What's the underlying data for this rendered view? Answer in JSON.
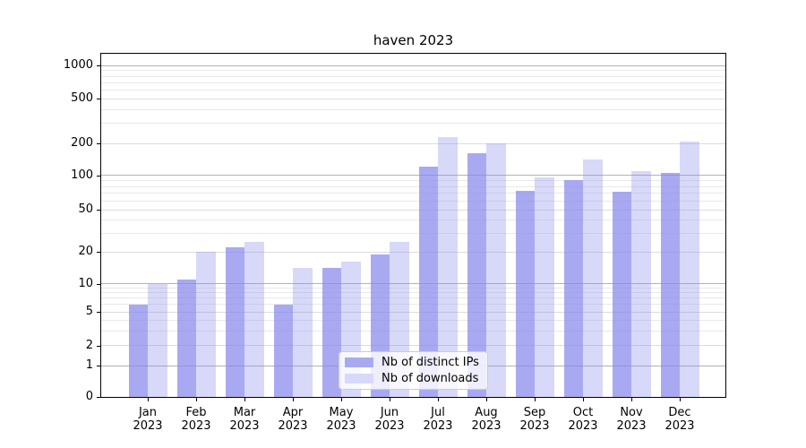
{
  "title": "haven 2023",
  "chart_data": {
    "type": "bar",
    "title": "haven 2023",
    "categories": [
      "Jan\n2023",
      "Feb\n2023",
      "Mar\n2023",
      "Apr\n2023",
      "May\n2023",
      "Jun\n2023",
      "Jul\n2023",
      "Aug\n2023",
      "Sep\n2023",
      "Oct\n2023",
      "Nov\n2023",
      "Dec\n2023"
    ],
    "series": [
      {
        "name": "Nb of distinct IPs",
        "values": [
          6,
          11,
          22,
          6,
          14,
          19,
          120,
          160,
          73,
          91,
          72,
          105
        ],
        "fill": "rgba(136,136,237,0.72)",
        "legend_color": "#a9a9f2"
      },
      {
        "name": "Nb of downloads",
        "values": [
          10,
          20,
          25,
          14,
          16,
          25,
          228,
          200,
          96,
          140,
          110,
          208
        ],
        "fill": "rgba(136,136,237,0.33)",
        "legend_color": "#d8d8f9"
      }
    ],
    "y_axis": {
      "scale": "symlog",
      "labeled_ticks": [
        0,
        1,
        2,
        5,
        10,
        20,
        50,
        100,
        200,
        500,
        1000
      ],
      "minor_ticks": [
        3,
        4,
        6,
        7,
        8,
        9,
        30,
        40,
        60,
        70,
        80,
        90,
        300,
        400,
        600,
        700,
        800,
        900
      ],
      "decade_grid_color": "#b3b3b3",
      "labeled_grid_color": "#dcdcdc",
      "minor_grid_color": "#e9e9e9"
    },
    "x_axis": {
      "tick_color": "#000000",
      "label_color": "#000000"
    },
    "grid": true,
    "legend": {
      "position": "lower center",
      "entries": [
        "Nb of distinct IPs",
        "Nb of downloads"
      ]
    }
  }
}
